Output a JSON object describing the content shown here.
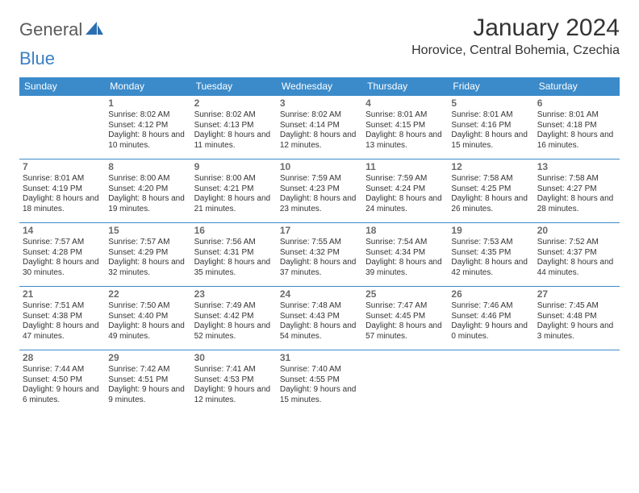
{
  "brand": {
    "part1": "General",
    "part2": "Blue"
  },
  "title": "January 2024",
  "location": "Horovice, Central Bohemia, Czechia",
  "colors": {
    "header_bg": "#3b8bca",
    "header_text": "#ffffff",
    "border": "#3b8bca",
    "text": "#333333",
    "daynum": "#6b6b6b",
    "brand_gray": "#5a5a5a",
    "brand_blue": "#3b7fc4",
    "background": "#ffffff"
  },
  "typography": {
    "title_fontsize": 30,
    "location_fontsize": 16,
    "dayhead_fontsize": 12,
    "cell_fontsize": 10,
    "daynum_fontsize": 12
  },
  "day_headers": [
    "Sunday",
    "Monday",
    "Tuesday",
    "Wednesday",
    "Thursday",
    "Friday",
    "Saturday"
  ],
  "weeks": [
    [
      {
        "num": "",
        "sunrise": "",
        "sunset": "",
        "daylight": ""
      },
      {
        "num": "1",
        "sunrise": "Sunrise: 8:02 AM",
        "sunset": "Sunset: 4:12 PM",
        "daylight": "Daylight: 8 hours and 10 minutes."
      },
      {
        "num": "2",
        "sunrise": "Sunrise: 8:02 AM",
        "sunset": "Sunset: 4:13 PM",
        "daylight": "Daylight: 8 hours and 11 minutes."
      },
      {
        "num": "3",
        "sunrise": "Sunrise: 8:02 AM",
        "sunset": "Sunset: 4:14 PM",
        "daylight": "Daylight: 8 hours and 12 minutes."
      },
      {
        "num": "4",
        "sunrise": "Sunrise: 8:01 AM",
        "sunset": "Sunset: 4:15 PM",
        "daylight": "Daylight: 8 hours and 13 minutes."
      },
      {
        "num": "5",
        "sunrise": "Sunrise: 8:01 AM",
        "sunset": "Sunset: 4:16 PM",
        "daylight": "Daylight: 8 hours and 15 minutes."
      },
      {
        "num": "6",
        "sunrise": "Sunrise: 8:01 AM",
        "sunset": "Sunset: 4:18 PM",
        "daylight": "Daylight: 8 hours and 16 minutes."
      }
    ],
    [
      {
        "num": "7",
        "sunrise": "Sunrise: 8:01 AM",
        "sunset": "Sunset: 4:19 PM",
        "daylight": "Daylight: 8 hours and 18 minutes."
      },
      {
        "num": "8",
        "sunrise": "Sunrise: 8:00 AM",
        "sunset": "Sunset: 4:20 PM",
        "daylight": "Daylight: 8 hours and 19 minutes."
      },
      {
        "num": "9",
        "sunrise": "Sunrise: 8:00 AM",
        "sunset": "Sunset: 4:21 PM",
        "daylight": "Daylight: 8 hours and 21 minutes."
      },
      {
        "num": "10",
        "sunrise": "Sunrise: 7:59 AM",
        "sunset": "Sunset: 4:23 PM",
        "daylight": "Daylight: 8 hours and 23 minutes."
      },
      {
        "num": "11",
        "sunrise": "Sunrise: 7:59 AM",
        "sunset": "Sunset: 4:24 PM",
        "daylight": "Daylight: 8 hours and 24 minutes."
      },
      {
        "num": "12",
        "sunrise": "Sunrise: 7:58 AM",
        "sunset": "Sunset: 4:25 PM",
        "daylight": "Daylight: 8 hours and 26 minutes."
      },
      {
        "num": "13",
        "sunrise": "Sunrise: 7:58 AM",
        "sunset": "Sunset: 4:27 PM",
        "daylight": "Daylight: 8 hours and 28 minutes."
      }
    ],
    [
      {
        "num": "14",
        "sunrise": "Sunrise: 7:57 AM",
        "sunset": "Sunset: 4:28 PM",
        "daylight": "Daylight: 8 hours and 30 minutes."
      },
      {
        "num": "15",
        "sunrise": "Sunrise: 7:57 AM",
        "sunset": "Sunset: 4:29 PM",
        "daylight": "Daylight: 8 hours and 32 minutes."
      },
      {
        "num": "16",
        "sunrise": "Sunrise: 7:56 AM",
        "sunset": "Sunset: 4:31 PM",
        "daylight": "Daylight: 8 hours and 35 minutes."
      },
      {
        "num": "17",
        "sunrise": "Sunrise: 7:55 AM",
        "sunset": "Sunset: 4:32 PM",
        "daylight": "Daylight: 8 hours and 37 minutes."
      },
      {
        "num": "18",
        "sunrise": "Sunrise: 7:54 AM",
        "sunset": "Sunset: 4:34 PM",
        "daylight": "Daylight: 8 hours and 39 minutes."
      },
      {
        "num": "19",
        "sunrise": "Sunrise: 7:53 AM",
        "sunset": "Sunset: 4:35 PM",
        "daylight": "Daylight: 8 hours and 42 minutes."
      },
      {
        "num": "20",
        "sunrise": "Sunrise: 7:52 AM",
        "sunset": "Sunset: 4:37 PM",
        "daylight": "Daylight: 8 hours and 44 minutes."
      }
    ],
    [
      {
        "num": "21",
        "sunrise": "Sunrise: 7:51 AM",
        "sunset": "Sunset: 4:38 PM",
        "daylight": "Daylight: 8 hours and 47 minutes."
      },
      {
        "num": "22",
        "sunrise": "Sunrise: 7:50 AM",
        "sunset": "Sunset: 4:40 PM",
        "daylight": "Daylight: 8 hours and 49 minutes."
      },
      {
        "num": "23",
        "sunrise": "Sunrise: 7:49 AM",
        "sunset": "Sunset: 4:42 PM",
        "daylight": "Daylight: 8 hours and 52 minutes."
      },
      {
        "num": "24",
        "sunrise": "Sunrise: 7:48 AM",
        "sunset": "Sunset: 4:43 PM",
        "daylight": "Daylight: 8 hours and 54 minutes."
      },
      {
        "num": "25",
        "sunrise": "Sunrise: 7:47 AM",
        "sunset": "Sunset: 4:45 PM",
        "daylight": "Daylight: 8 hours and 57 minutes."
      },
      {
        "num": "26",
        "sunrise": "Sunrise: 7:46 AM",
        "sunset": "Sunset: 4:46 PM",
        "daylight": "Daylight: 9 hours and 0 minutes."
      },
      {
        "num": "27",
        "sunrise": "Sunrise: 7:45 AM",
        "sunset": "Sunset: 4:48 PM",
        "daylight": "Daylight: 9 hours and 3 minutes."
      }
    ],
    [
      {
        "num": "28",
        "sunrise": "Sunrise: 7:44 AM",
        "sunset": "Sunset: 4:50 PM",
        "daylight": "Daylight: 9 hours and 6 minutes."
      },
      {
        "num": "29",
        "sunrise": "Sunrise: 7:42 AM",
        "sunset": "Sunset: 4:51 PM",
        "daylight": "Daylight: 9 hours and 9 minutes."
      },
      {
        "num": "30",
        "sunrise": "Sunrise: 7:41 AM",
        "sunset": "Sunset: 4:53 PM",
        "daylight": "Daylight: 9 hours and 12 minutes."
      },
      {
        "num": "31",
        "sunrise": "Sunrise: 7:40 AM",
        "sunset": "Sunset: 4:55 PM",
        "daylight": "Daylight: 9 hours and 15 minutes."
      },
      {
        "num": "",
        "sunrise": "",
        "sunset": "",
        "daylight": ""
      },
      {
        "num": "",
        "sunrise": "",
        "sunset": "",
        "daylight": ""
      },
      {
        "num": "",
        "sunrise": "",
        "sunset": "",
        "daylight": ""
      }
    ]
  ]
}
